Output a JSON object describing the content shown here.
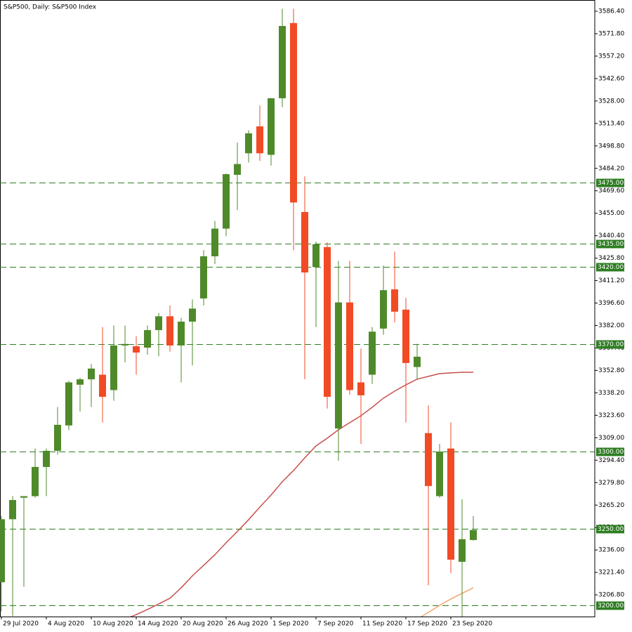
{
  "chart_data": {
    "type": "candlestick",
    "title": "S&P500, Daily:  S&P500 Index",
    "categories": [
      "29 Jul 2020",
      null,
      null,
      null,
      "4 Aug 2020",
      null,
      null,
      null,
      "10 Aug 2020",
      null,
      null,
      null,
      "14 Aug 2020",
      null,
      null,
      null,
      "20 Aug 2020",
      null,
      null,
      null,
      "26 Aug 2020",
      null,
      null,
      null,
      "1 Sep 2020",
      null,
      null,
      null,
      "7 Sep 2020",
      null,
      null,
      null,
      "11 Sep 2020",
      null,
      null,
      null,
      "17 Sep 2020",
      null,
      null,
      null,
      "23 Sep 2020",
      null,
      null
    ],
    "open": [
      3215,
      3256,
      3270,
      3271,
      3290,
      3300.5,
      3317,
      3343.5,
      3347,
      3350,
      3340,
      3369,
      3368.5,
      3367.6,
      3379,
      3388,
      3369,
      3384.5,
      3399.6,
      3427,
      3445,
      3480,
      3494,
      3511.5,
      3493,
      3529.8,
      3578.7,
      3455.8,
      3420,
      3433,
      3315,
      3397,
      3345,
      3350,
      3380,
      3405.5,
      3392.3,
      3355,
      3312,
      3271,
      3302,
      3228.3,
      3242.5
    ],
    "high": [
      3258,
      3271,
      3271,
      3302,
      3302,
      3329,
      3346,
      3348,
      3357,
      3381,
      3382,
      3382,
      3375,
      3382,
      3390,
      3395,
      3387,
      3399,
      3431,
      3450,
      3481,
      3501,
      3509,
      3525,
      3530,
      3588,
      3588,
      3479,
      3436.6,
      3436,
      3424,
      3424,
      3367,
      3381,
      3421,
      3430,
      3400,
      3370,
      3330,
      3305,
      3319,
      3269,
      3258
    ],
    "low": [
      3196,
      3193,
      3212,
      3270,
      3271,
      3298,
      3314,
      3326,
      3329,
      3319,
      3333,
      3358,
      3350,
      3363,
      3362,
      3365,
      3345,
      3356,
      3395,
      3422,
      3440,
      3457,
      3488,
      3489,
      3486,
      3524,
      3431,
      3347,
      3381,
      3328,
      3294,
      3337,
      3305,
      3344,
      3376,
      3384,
      3319,
      3347,
      3213,
      3270,
      3221,
      3192,
      3242
    ],
    "close": [
      3256,
      3268.5,
      3271,
      3290,
      3300.5,
      3317.4,
      3345,
      3347,
      3354,
      3335.6,
      3369,
      3370,
      3364.4,
      3379,
      3388,
      3369,
      3384.5,
      3393,
      3427,
      3445,
      3480.4,
      3487,
      3507,
      3494,
      3529.8,
      3576.8,
      3462,
      3416.5,
      3434.8,
      3335.6,
      3397,
      3340,
      3336.6,
      3378,
      3405,
      3391,
      3357.6,
      3361.7,
      3277.6,
      3300,
      3229.7,
      3243,
      3249
    ],
    "up_color": "#4f8a2a",
    "down_color": "#f24a24",
    "indicators": [
      {
        "color": "#c8504f",
        "values": [
          null,
          null,
          null,
          null,
          null,
          null,
          null,
          null,
          null,
          null,
          null,
          3190.9,
          3194,
          3197.3,
          3200.9,
          3204.6,
          3211.4,
          3219.2,
          3226,
          3232.9,
          3240.7,
          3248,
          3255.7,
          3263.9,
          3271.7,
          3280.4,
          3287.7,
          3295.9,
          3303.7,
          3308.7,
          3314.2,
          3318.8,
          3323.3,
          3328.8,
          3334.7,
          3339.3,
          3343.4,
          3347.1,
          3348.9,
          3350.7,
          3351.2,
          3351.6,
          3351.6
        ]
      },
      {
        "color": "#f5a56e",
        "values": [
          null,
          null,
          null,
          null,
          null,
          null,
          null,
          null,
          null,
          null,
          null,
          null,
          null,
          null,
          null,
          null,
          null,
          null,
          null,
          null,
          null,
          null,
          null,
          null,
          null,
          null,
          null,
          null,
          null,
          null,
          null,
          null,
          null,
          null,
          null,
          null,
          null,
          3191,
          3195.4,
          3200,
          3204.1,
          3207.8,
          3211.4
        ]
      }
    ],
    "levels": [
      {
        "value": 3475,
        "label": "3475.00"
      },
      {
        "value": 3435,
        "label": "3435.00"
      },
      {
        "value": 3420,
        "label": "3420.00"
      },
      {
        "value": 3370,
        "label": "3370.00"
      },
      {
        "value": 3300,
        "label": "3300.00"
      },
      {
        "value": 3250,
        "label": "3250.00"
      },
      {
        "value": 3200,
        "label": "3200.00"
      }
    ],
    "level_color": "#2e7d22",
    "ylim": [
      3192.7,
      3593.7
    ],
    "yticks": [
      {
        "value": 3586.4,
        "label": "3586.40"
      },
      {
        "value": 3571.8,
        "label": "3571.80"
      },
      {
        "value": 3557.2,
        "label": "3557.20"
      },
      {
        "value": 3542.6,
        "label": "3542.60"
      },
      {
        "value": 3528,
        "label": "3528.00"
      },
      {
        "value": 3513.4,
        "label": "3513.40"
      },
      {
        "value": 3498.8,
        "label": "3498.80"
      },
      {
        "value": 3484.2,
        "label": "3484.20"
      },
      {
        "value": 3469.6,
        "label": "3469.60"
      },
      {
        "value": 3455,
        "label": "3455.00"
      },
      {
        "value": 3440.4,
        "label": "3440.40"
      },
      {
        "value": 3425.8,
        "label": "3425.80"
      },
      {
        "value": 3411.2,
        "label": "3411.20"
      },
      {
        "value": 3396.6,
        "label": "3396.60"
      },
      {
        "value": 3382,
        "label": "3382.00"
      },
      {
        "value": 3367.4,
        "label": "3367.40"
      },
      {
        "value": 3352.8,
        "label": "3352.80"
      },
      {
        "value": 3338.2,
        "label": "3338.20"
      },
      {
        "value": 3323.6,
        "label": "3323.60"
      },
      {
        "value": 3309,
        "label": "3309.00"
      },
      {
        "value": 3294.4,
        "label": "3294.40"
      },
      {
        "value": 3279.8,
        "label": "3279.80"
      },
      {
        "value": 3265.2,
        "label": "3265.20"
      },
      {
        "value": 3250.6,
        "label": "3250.60"
      },
      {
        "value": 3236,
        "label": "3236.00"
      },
      {
        "value": 3221.4,
        "label": "3221.40"
      },
      {
        "value": 3206.8,
        "label": "3206.80"
      }
    ]
  }
}
